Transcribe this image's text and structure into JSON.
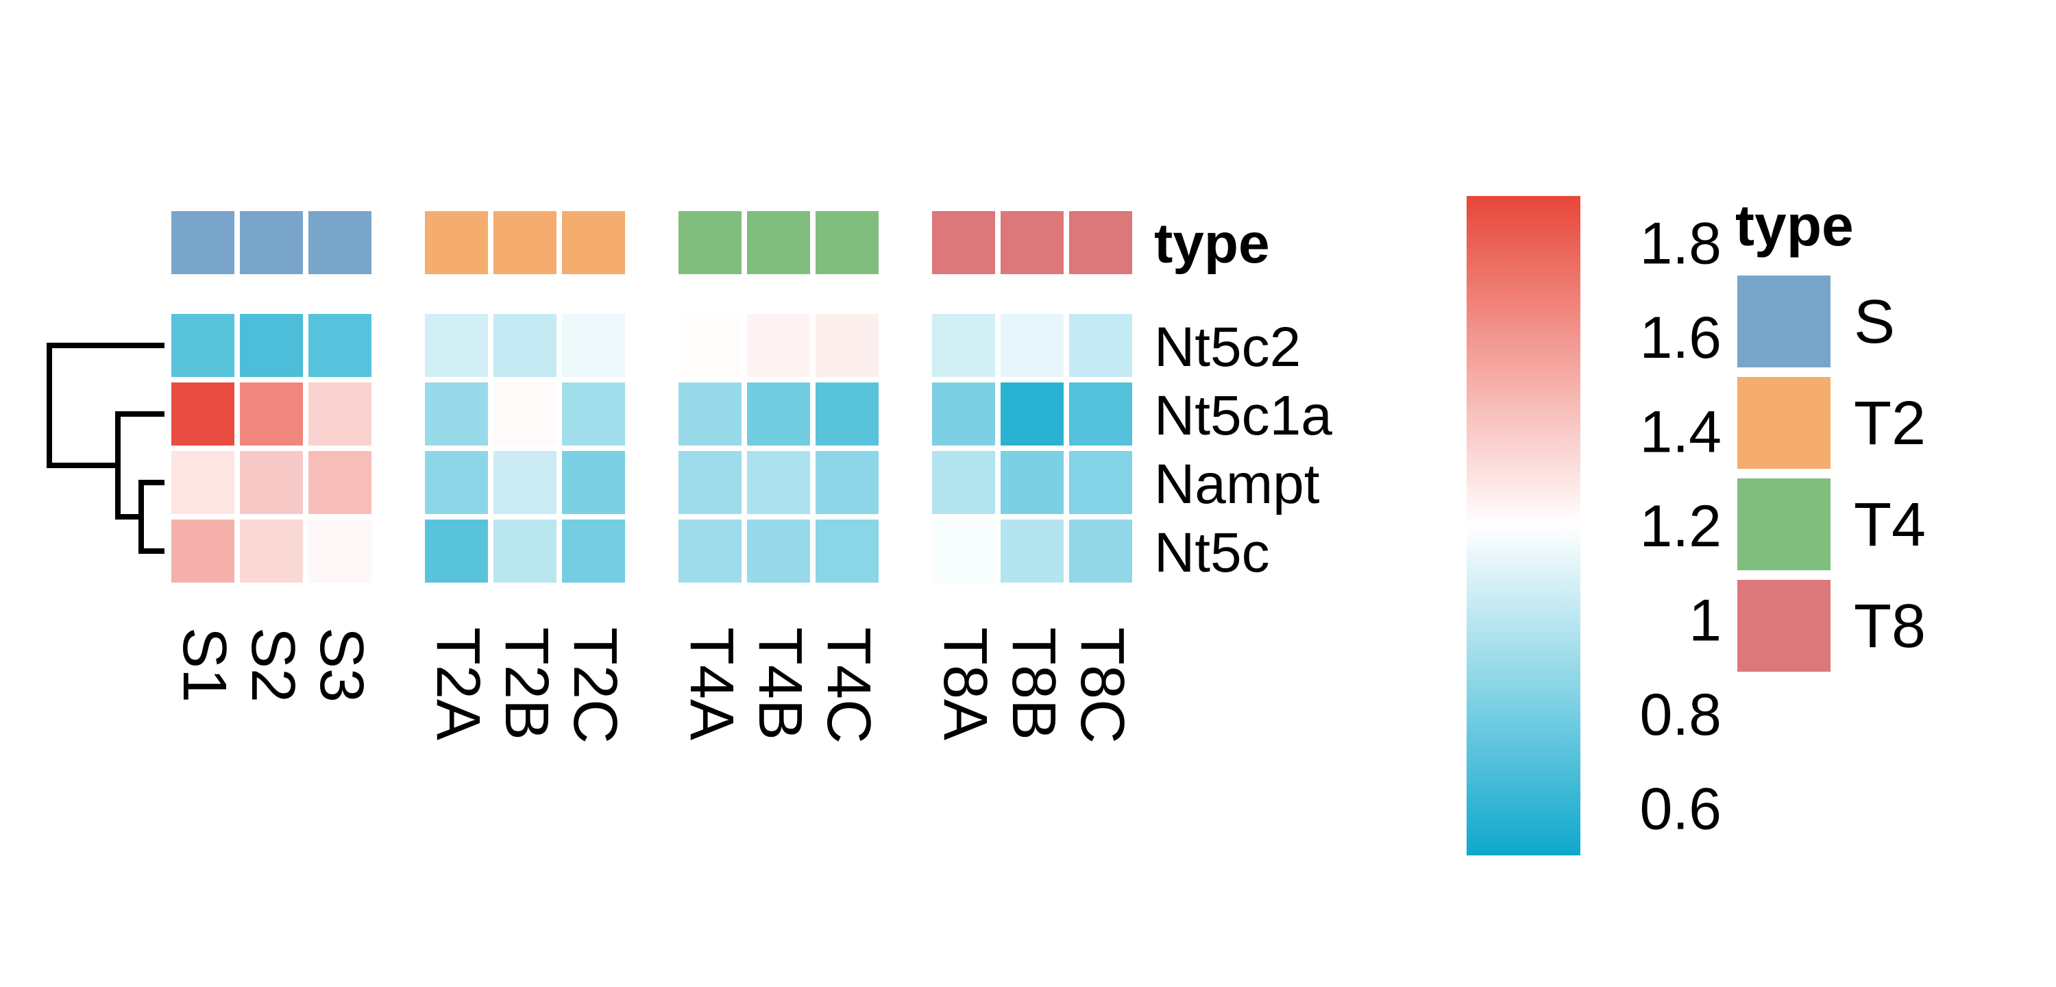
{
  "chart_data": {
    "type": "heatmap",
    "columns": [
      "S1",
      "S2",
      "S3",
      "T2A",
      "T2B",
      "T2C",
      "T4A",
      "T4B",
      "T4C",
      "T8A",
      "T8B",
      "T8C"
    ],
    "column_groups": [
      {
        "name": "S",
        "columns": [
          "S1",
          "S2",
          "S3"
        ],
        "color": "#78A5C9"
      },
      {
        "name": "T2",
        "columns": [
          "T2A",
          "T2B",
          "T2C"
        ],
        "color": "#F5AD6F"
      },
      {
        "name": "T4",
        "columns": [
          "T4A",
          "T4B",
          "T4C"
        ],
        "color": "#80BE7D"
      },
      {
        "name": "T8",
        "columns": [
          "T8A",
          "T8B",
          "T8C"
        ],
        "color": "#DC777A"
      }
    ],
    "rows": [
      "Nt5c2",
      "Nt5c1a",
      "Nampt",
      "Nt5c"
    ],
    "values": [
      [
        0.72,
        0.68,
        0.71,
        1.07,
        1.03,
        1.15,
        1.21,
        1.24,
        1.26,
        1.07,
        1.13,
        1.03
      ],
      [
        1.88,
        1.66,
        1.37,
        0.9,
        1.22,
        0.93,
        0.9,
        0.79,
        0.72,
        0.82,
        0.58,
        0.7
      ],
      [
        1.3,
        1.4,
        1.45,
        0.87,
        1.05,
        0.82,
        0.92,
        0.96,
        0.87,
        0.98,
        0.82,
        0.84
      ],
      [
        1.5,
        1.35,
        1.23,
        0.72,
        1.0,
        0.8,
        0.92,
        0.9,
        0.86,
        1.18,
        0.98,
        0.88
      ]
    ],
    "row_dendrogram": [
      [
        2,
        3
      ],
      [
        1,
        "2+3"
      ],
      [
        0,
        "1+2+3"
      ]
    ],
    "annotation_title": "type",
    "colorbar": {
      "ticks": [
        "0.6",
        "0.8",
        "1",
        "1.2",
        "1.4",
        "1.6",
        "1.8"
      ],
      "tick_values": [
        0.6,
        0.8,
        1.0,
        1.2,
        1.4,
        1.6,
        1.8
      ],
      "range": [
        0.5,
        1.9
      ],
      "colors": {
        "low": "#0EA8CC",
        "mid": "#FFFFFF",
        "high": "#E8473A"
      },
      "mid_value": 1.2
    },
    "legend": {
      "title": "type",
      "entries": [
        {
          "label": "S",
          "color": "#78A5C9"
        },
        {
          "label": "T2",
          "color": "#F5AD6F"
        },
        {
          "label": "T4",
          "color": "#80BE7D"
        },
        {
          "label": "T8",
          "color": "#DC777A"
        }
      ]
    }
  }
}
